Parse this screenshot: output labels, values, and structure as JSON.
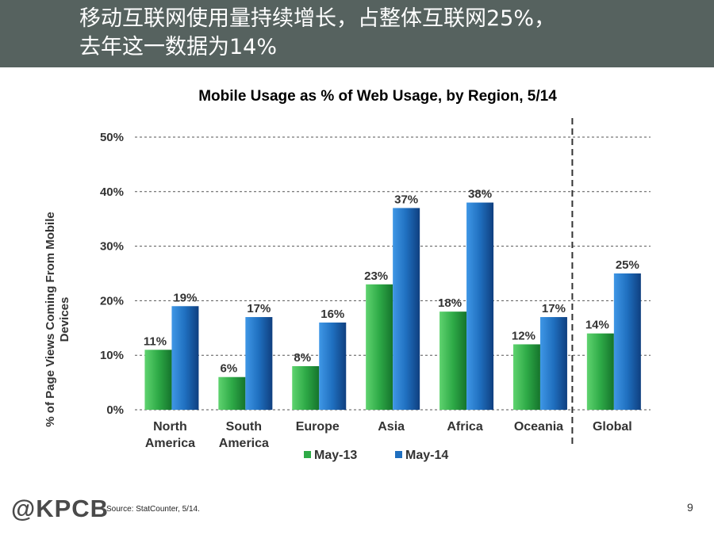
{
  "slide": {
    "headline_line1": "移动互联网使用量持续增长，占整体互联网25%，",
    "headline_line2": "去年这一数据为14%",
    "logo": "@KPCB",
    "source": "Source: StatCounter, 5/14.",
    "page_number": "9"
  },
  "colors": {
    "header": "#56625f",
    "may13": "#2eaa47",
    "may14": "#1f6fbf"
  },
  "chart_data": {
    "type": "bar",
    "title": "Mobile Usage as % of Web Usage, by Region, 5/14",
    "ylabel_lines": [
      "% of Page Views Coming From Mobile",
      "Devices"
    ],
    "xlabel": "",
    "ylim": [
      0,
      50
    ],
    "yticks": [
      0,
      10,
      20,
      30,
      40,
      50
    ],
    "ytick_labels": [
      "0%",
      "10%",
      "20%",
      "30%",
      "40%",
      "50%"
    ],
    "grid": true,
    "legend_position": "bottom",
    "categories": [
      [
        "North",
        "America"
      ],
      [
        "South",
        "America"
      ],
      [
        "Europe"
      ],
      [
        "Asia"
      ],
      [
        "Africa"
      ],
      [
        "Oceania"
      ],
      [
        "Global"
      ]
    ],
    "separator_before_category": "Global",
    "series": [
      {
        "name": "May-13",
        "values": [
          11,
          6,
          8,
          23,
          18,
          12,
          14
        ],
        "labels": [
          "11%",
          "6%",
          "8%",
          "23%",
          "18%",
          "12%",
          "14%"
        ]
      },
      {
        "name": "May-14",
        "values": [
          19,
          17,
          16,
          37,
          38,
          17,
          25
        ],
        "labels": [
          "19%",
          "17%",
          "16%",
          "37%",
          "38%",
          "17%",
          "25%"
        ]
      }
    ]
  }
}
